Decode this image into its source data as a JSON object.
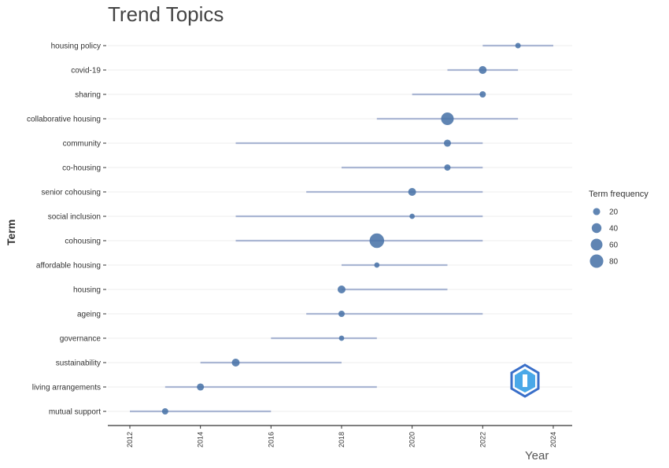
{
  "chart_data": {
    "type": "scatter",
    "title": "Trend Topics",
    "xlabel": "Year",
    "ylabel": "Term",
    "xlim": [
      2011.4,
      2024.5
    ],
    "xticks": [
      2012,
      2014,
      2016,
      2018,
      2020,
      2022,
      2024
    ],
    "grid": true,
    "legend": {
      "title": "Term frequency",
      "position": "right",
      "sizes": [
        20,
        40,
        60,
        80
      ]
    },
    "colors": {
      "point": "#4a74a8",
      "range": "#aab6d3",
      "grid": "#ececec"
    },
    "terms": [
      {
        "term": "housing policy",
        "start": 2022,
        "median": 2023,
        "end": 2024,
        "freq": 11
      },
      {
        "term": "covid-19",
        "start": 2021,
        "median": 2022,
        "end": 2023,
        "freq": 25
      },
      {
        "term": "sharing",
        "start": 2020,
        "median": 2022,
        "end": 2022,
        "freq": 15
      },
      {
        "term": "collaborative housing",
        "start": 2019,
        "median": 2021,
        "end": 2023,
        "freq": 70
      },
      {
        "term": "community",
        "start": 2015,
        "median": 2021,
        "end": 2022,
        "freq": 20
      },
      {
        "term": "co-housing",
        "start": 2018,
        "median": 2021,
        "end": 2022,
        "freq": 15
      },
      {
        "term": "senior cohousing",
        "start": 2017,
        "median": 2020,
        "end": 2022,
        "freq": 25
      },
      {
        "term": "social inclusion",
        "start": 2015,
        "median": 2020,
        "end": 2022,
        "freq": 10
      },
      {
        "term": "cohousing",
        "start": 2015,
        "median": 2019,
        "end": 2022,
        "freq": 95
      },
      {
        "term": "affordable housing",
        "start": 2018,
        "median": 2019,
        "end": 2021,
        "freq": 10
      },
      {
        "term": "housing",
        "start": 2018,
        "median": 2018,
        "end": 2021,
        "freq": 25
      },
      {
        "term": "ageing",
        "start": 2017,
        "median": 2018,
        "end": 2022,
        "freq": 15
      },
      {
        "term": "governance",
        "start": 2016,
        "median": 2018,
        "end": 2019,
        "freq": 10
      },
      {
        "term": "sustainability",
        "start": 2014,
        "median": 2015,
        "end": 2018,
        "freq": 25
      },
      {
        "term": "living arrangements",
        "start": 2013,
        "median": 2014,
        "end": 2019,
        "freq": 20
      },
      {
        "term": "mutual support",
        "start": 2012,
        "median": 2013,
        "end": 2016,
        "freq": 15
      }
    ]
  }
}
